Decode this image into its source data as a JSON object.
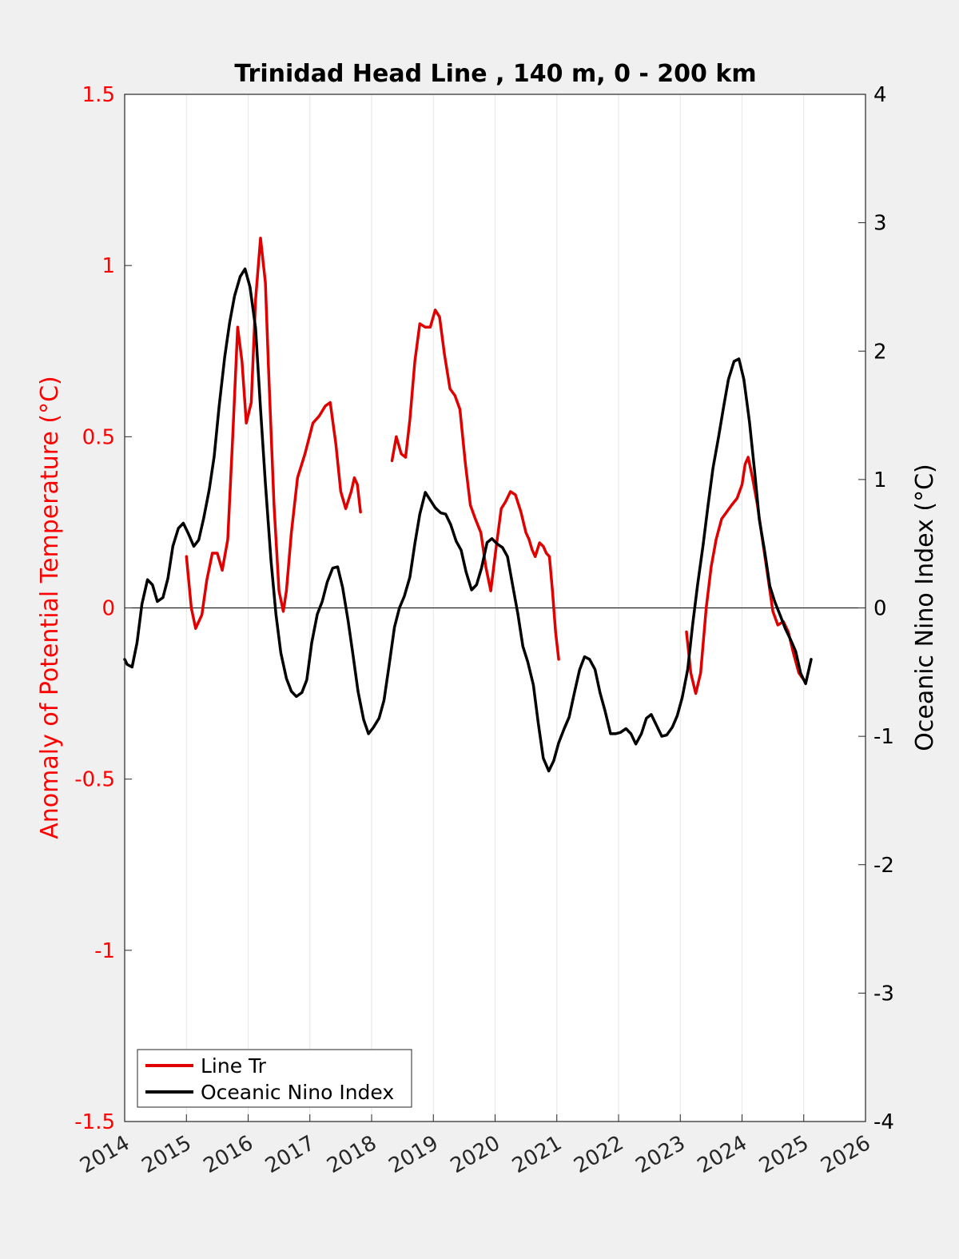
{
  "chart_data": {
    "type": "line",
    "title": "Trinidad Head Line , 140 m, 0 - 200 km",
    "ylabel_left": "Anomaly of Potential Temperature (°C)",
    "ylabel_right": "Oceanic Nino Index (°C)",
    "xlim": [
      2014,
      2026
    ],
    "ylim_left": [
      -1.5,
      1.5
    ],
    "ylim_right": [
      -4,
      4
    ],
    "x_ticks": [
      "2014",
      "2015",
      "2016",
      "2017",
      "2018",
      "2019",
      "2020",
      "2021",
      "2022",
      "2023",
      "2024",
      "2025",
      "2026"
    ],
    "y_left_ticks": [
      "1.5",
      "1",
      "0.5",
      "0",
      "-0.5",
      "-1",
      "-1.5"
    ],
    "y_right_ticks": [
      "4",
      "3",
      "2",
      "1",
      "0",
      "-1",
      "-2",
      "-3",
      "-4"
    ],
    "grid": "vertical",
    "zero_line": true,
    "legend_placement": "bottom-left",
    "colors": {
      "line_tr": "#e00000",
      "oni": "#000000",
      "left_axis": "#ff0000"
    },
    "series": [
      {
        "name": "Line Tr",
        "axis": "left",
        "segments": [
          [
            [
              2015.0,
              0.15
            ],
            [
              2015.08,
              0.0
            ],
            [
              2015.15,
              -0.06
            ],
            [
              2015.25,
              -0.02
            ],
            [
              2015.33,
              0.08
            ],
            [
              2015.42,
              0.16
            ],
            [
              2015.5,
              0.16
            ],
            [
              2015.58,
              0.11
            ],
            [
              2015.67,
              0.2
            ],
            [
              2015.75,
              0.5
            ],
            [
              2015.83,
              0.82
            ],
            [
              2015.9,
              0.72
            ],
            [
              2015.97,
              0.54
            ],
            [
              2016.05,
              0.6
            ],
            [
              2016.12,
              0.9
            ],
            [
              2016.2,
              1.08
            ],
            [
              2016.28,
              0.95
            ],
            [
              2016.33,
              0.7
            ],
            [
              2016.42,
              0.3
            ],
            [
              2016.5,
              0.05
            ],
            [
              2016.57,
              -0.01
            ],
            [
              2016.62,
              0.05
            ],
            [
              2016.7,
              0.22
            ],
            [
              2016.8,
              0.38
            ],
            [
              2016.92,
              0.45
            ],
            [
              2017.05,
              0.54
            ],
            [
              2017.15,
              0.56
            ],
            [
              2017.25,
              0.59
            ],
            [
              2017.33,
              0.6
            ],
            [
              2017.42,
              0.48
            ],
            [
              2017.5,
              0.34
            ],
            [
              2017.58,
              0.29
            ],
            [
              2017.67,
              0.34
            ],
            [
              2017.72,
              0.38
            ],
            [
              2017.77,
              0.36
            ],
            [
              2017.82,
              0.28
            ]
          ],
          [
            [
              2018.33,
              0.43
            ],
            [
              2018.4,
              0.5
            ],
            [
              2018.48,
              0.45
            ],
            [
              2018.55,
              0.44
            ],
            [
              2018.62,
              0.55
            ],
            [
              2018.7,
              0.72
            ],
            [
              2018.78,
              0.83
            ],
            [
              2018.87,
              0.82
            ],
            [
              2018.95,
              0.82
            ],
            [
              2019.03,
              0.87
            ],
            [
              2019.1,
              0.85
            ],
            [
              2019.18,
              0.74
            ],
            [
              2019.27,
              0.64
            ],
            [
              2019.35,
              0.62
            ],
            [
              2019.43,
              0.58
            ],
            [
              2019.52,
              0.42
            ],
            [
              2019.6,
              0.3
            ],
            [
              2019.68,
              0.26
            ],
            [
              2019.77,
              0.22
            ],
            [
              2019.85,
              0.12
            ],
            [
              2019.93,
              0.05
            ],
            [
              2020.02,
              0.18
            ],
            [
              2020.1,
              0.29
            ],
            [
              2020.17,
              0.31
            ],
            [
              2020.25,
              0.34
            ],
            [
              2020.33,
              0.33
            ],
            [
              2020.42,
              0.28
            ],
            [
              2020.5,
              0.22
            ],
            [
              2020.55,
              0.2
            ],
            [
              2020.6,
              0.17
            ],
            [
              2020.65,
              0.15
            ],
            [
              2020.72,
              0.19
            ],
            [
              2020.78,
              0.18
            ],
            [
              2020.83,
              0.16
            ],
            [
              2020.88,
              0.15
            ],
            [
              2020.93,
              0.05
            ],
            [
              2020.98,
              -0.07
            ],
            [
              2021.03,
              -0.15
            ]
          ],
          [
            [
              2023.1,
              -0.07
            ],
            [
              2023.17,
              -0.19
            ],
            [
              2023.25,
              -0.25
            ],
            [
              2023.33,
              -0.19
            ],
            [
              2023.42,
              0.0
            ],
            [
              2023.5,
              0.12
            ],
            [
              2023.58,
              0.2
            ],
            [
              2023.67,
              0.26
            ],
            [
              2023.75,
              0.28
            ],
            [
              2023.83,
              0.3
            ],
            [
              2023.92,
              0.32
            ],
            [
              2024.0,
              0.36
            ],
            [
              2024.05,
              0.42
            ],
            [
              2024.1,
              0.44
            ],
            [
              2024.17,
              0.38
            ],
            [
              2024.25,
              0.3
            ],
            [
              2024.33,
              0.2
            ],
            [
              2024.42,
              0.09
            ],
            [
              2024.5,
              -0.01
            ],
            [
              2024.58,
              -0.05
            ],
            [
              2024.67,
              -0.04
            ],
            [
              2024.75,
              -0.07
            ],
            [
              2024.83,
              -0.13
            ],
            [
              2024.92,
              -0.19
            ],
            [
              2025.0,
              -0.21
            ]
          ]
        ]
      },
      {
        "name": "Oceanic Nino Index",
        "axis": "right",
        "values": [
          [
            2014.0,
            -0.4
          ],
          [
            2014.04,
            -0.44
          ],
          [
            2014.12,
            -0.46
          ],
          [
            2014.2,
            -0.27
          ],
          [
            2014.28,
            0.03
          ],
          [
            2014.37,
            0.22
          ],
          [
            2014.45,
            0.18
          ],
          [
            2014.53,
            0.05
          ],
          [
            2014.62,
            0.08
          ],
          [
            2014.7,
            0.23
          ],
          [
            2014.78,
            0.48
          ],
          [
            2014.87,
            0.62
          ],
          [
            2014.95,
            0.66
          ],
          [
            2015.03,
            0.58
          ],
          [
            2015.12,
            0.48
          ],
          [
            2015.2,
            0.53
          ],
          [
            2015.28,
            0.7
          ],
          [
            2015.37,
            0.92
          ],
          [
            2015.45,
            1.18
          ],
          [
            2015.53,
            1.57
          ],
          [
            2015.62,
            1.95
          ],
          [
            2015.7,
            2.22
          ],
          [
            2015.78,
            2.43
          ],
          [
            2015.87,
            2.58
          ],
          [
            2015.95,
            2.64
          ],
          [
            2016.03,
            2.5
          ],
          [
            2016.12,
            2.18
          ],
          [
            2016.2,
            1.55
          ],
          [
            2016.28,
            0.97
          ],
          [
            2016.37,
            0.37
          ],
          [
            2016.45,
            -0.05
          ],
          [
            2016.53,
            -0.35
          ],
          [
            2016.62,
            -0.55
          ],
          [
            2016.7,
            -0.65
          ],
          [
            2016.78,
            -0.69
          ],
          [
            2016.87,
            -0.66
          ],
          [
            2016.95,
            -0.56
          ],
          [
            2017.03,
            -0.27
          ],
          [
            2017.12,
            -0.05
          ],
          [
            2017.2,
            0.05
          ],
          [
            2017.28,
            0.2
          ],
          [
            2017.37,
            0.31
          ],
          [
            2017.45,
            0.32
          ],
          [
            2017.53,
            0.16
          ],
          [
            2017.62,
            -0.1
          ],
          [
            2017.7,
            -0.37
          ],
          [
            2017.78,
            -0.65
          ],
          [
            2017.87,
            -0.87
          ],
          [
            2017.95,
            -0.98
          ],
          [
            2018.03,
            -0.93
          ],
          [
            2018.12,
            -0.86
          ],
          [
            2018.2,
            -0.72
          ],
          [
            2018.28,
            -0.46
          ],
          [
            2018.37,
            -0.15
          ],
          [
            2018.45,
            0.0
          ],
          [
            2018.53,
            0.09
          ],
          [
            2018.62,
            0.24
          ],
          [
            2018.7,
            0.5
          ],
          [
            2018.78,
            0.73
          ],
          [
            2018.87,
            0.9
          ],
          [
            2018.95,
            0.84
          ],
          [
            2019.03,
            0.78
          ],
          [
            2019.12,
            0.74
          ],
          [
            2019.2,
            0.73
          ],
          [
            2019.28,
            0.65
          ],
          [
            2019.37,
            0.52
          ],
          [
            2019.45,
            0.45
          ],
          [
            2019.53,
            0.28
          ],
          [
            2019.62,
            0.14
          ],
          [
            2019.7,
            0.18
          ],
          [
            2019.78,
            0.31
          ],
          [
            2019.87,
            0.51
          ],
          [
            2019.95,
            0.54
          ],
          [
            2020.03,
            0.5
          ],
          [
            2020.12,
            0.47
          ],
          [
            2020.2,
            0.4
          ],
          [
            2020.28,
            0.19
          ],
          [
            2020.37,
            -0.05
          ],
          [
            2020.45,
            -0.3
          ],
          [
            2020.53,
            -0.42
          ],
          [
            2020.62,
            -0.6
          ],
          [
            2020.7,
            -0.9
          ],
          [
            2020.78,
            -1.17
          ],
          [
            2020.87,
            -1.27
          ],
          [
            2020.95,
            -1.19
          ],
          [
            2021.03,
            -1.05
          ],
          [
            2021.12,
            -0.94
          ],
          [
            2021.2,
            -0.85
          ],
          [
            2021.28,
            -0.67
          ],
          [
            2021.37,
            -0.48
          ],
          [
            2021.45,
            -0.38
          ],
          [
            2021.53,
            -0.4
          ],
          [
            2021.62,
            -0.48
          ],
          [
            2021.7,
            -0.66
          ],
          [
            2021.78,
            -0.8
          ],
          [
            2021.87,
            -0.98
          ],
          [
            2021.95,
            -0.98
          ],
          [
            2022.03,
            -0.97
          ],
          [
            2022.12,
            -0.94
          ],
          [
            2022.2,
            -0.98
          ],
          [
            2022.28,
            -1.06
          ],
          [
            2022.37,
            -0.98
          ],
          [
            2022.45,
            -0.86
          ],
          [
            2022.53,
            -0.83
          ],
          [
            2022.62,
            -0.92
          ],
          [
            2022.7,
            -1.0
          ],
          [
            2022.78,
            -0.99
          ],
          [
            2022.87,
            -0.93
          ],
          [
            2022.95,
            -0.84
          ],
          [
            2023.03,
            -0.7
          ],
          [
            2023.12,
            -0.48
          ],
          [
            2023.2,
            -0.13
          ],
          [
            2023.28,
            0.18
          ],
          [
            2023.37,
            0.49
          ],
          [
            2023.45,
            0.8
          ],
          [
            2023.53,
            1.09
          ],
          [
            2023.62,
            1.33
          ],
          [
            2023.7,
            1.56
          ],
          [
            2023.78,
            1.78
          ],
          [
            2023.87,
            1.92
          ],
          [
            2023.95,
            1.94
          ],
          [
            2024.03,
            1.78
          ],
          [
            2024.12,
            1.45
          ],
          [
            2024.2,
            1.08
          ],
          [
            2024.28,
            0.69
          ],
          [
            2024.37,
            0.43
          ],
          [
            2024.45,
            0.17
          ],
          [
            2024.53,
            0.05
          ],
          [
            2024.62,
            -0.06
          ],
          [
            2024.7,
            -0.16
          ],
          [
            2024.78,
            -0.24
          ],
          [
            2024.87,
            -0.34
          ],
          [
            2024.95,
            -0.51
          ],
          [
            2025.03,
            -0.59
          ],
          [
            2025.12,
            -0.4
          ]
        ]
      }
    ],
    "legend": [
      "Line Tr",
      "Oceanic Nino Index"
    ]
  }
}
